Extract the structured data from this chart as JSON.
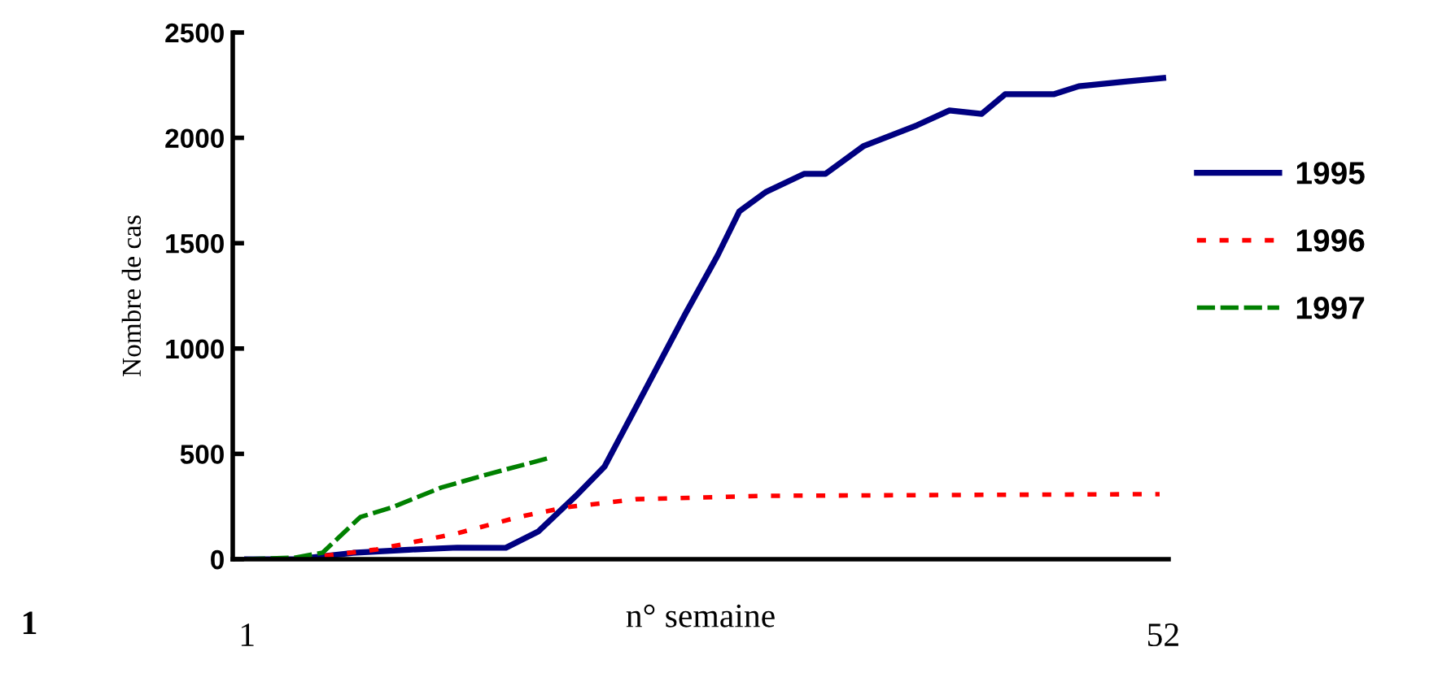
{
  "chart_data": {
    "type": "line",
    "ylabel": "Nombre de cas",
    "xlabel": "n° semaine",
    "annotations": [
      "1"
    ],
    "xlim": [
      0.2,
      52.3
    ],
    "xticks": [
      {
        "value": 1,
        "label": "1"
      },
      {
        "value": 52,
        "label": "52"
      }
    ],
    "ylim": [
      0,
      2500
    ],
    "yticks": [
      0,
      500,
      1000,
      1500,
      2000,
      2500
    ],
    "grid": false,
    "legend": "right",
    "marker": "none",
    "series": [
      {
        "name": "1995",
        "color": "#000080",
        "line_style": "solid",
        "x": [
          1,
          3.7,
          6.9,
          10,
          12.7,
          15.4,
          17.2,
          19.3,
          20.9,
          23.3,
          25.4,
          27.2,
          28.4,
          29.9,
          32,
          33.2,
          35.3,
          38.3,
          40.1,
          41.9,
          43.2,
          45.9,
          47.3,
          50,
          52
        ],
        "values": [
          0,
          0,
          30,
          45,
          55,
          54,
          131,
          300,
          440,
          826,
          1165,
          1443,
          1651,
          1744,
          1829,
          1829,
          1960,
          2060,
          2130,
          2114,
          2207,
          2207,
          2245,
          2268,
          2284
        ]
      },
      {
        "name": "1996",
        "color": "#ff0000",
        "line_style": "dotted",
        "x": [
          2.8,
          5.2,
          8.2,
          12.7,
          16.1,
          18.8,
          22.7,
          29.9,
          51.8
        ],
        "values": [
          0,
          15,
          46,
          123,
          200,
          247,
          285,
          301,
          309
        ]
      },
      {
        "name": "1997",
        "color": "#008000",
        "line_style": "dashed",
        "x": [
          1,
          3.7,
          5.2,
          7.3,
          9.1,
          11.8,
          14.3,
          17.7
        ],
        "values": [
          0,
          8,
          31,
          200,
          247,
          340,
          401,
          478
        ]
      }
    ]
  }
}
